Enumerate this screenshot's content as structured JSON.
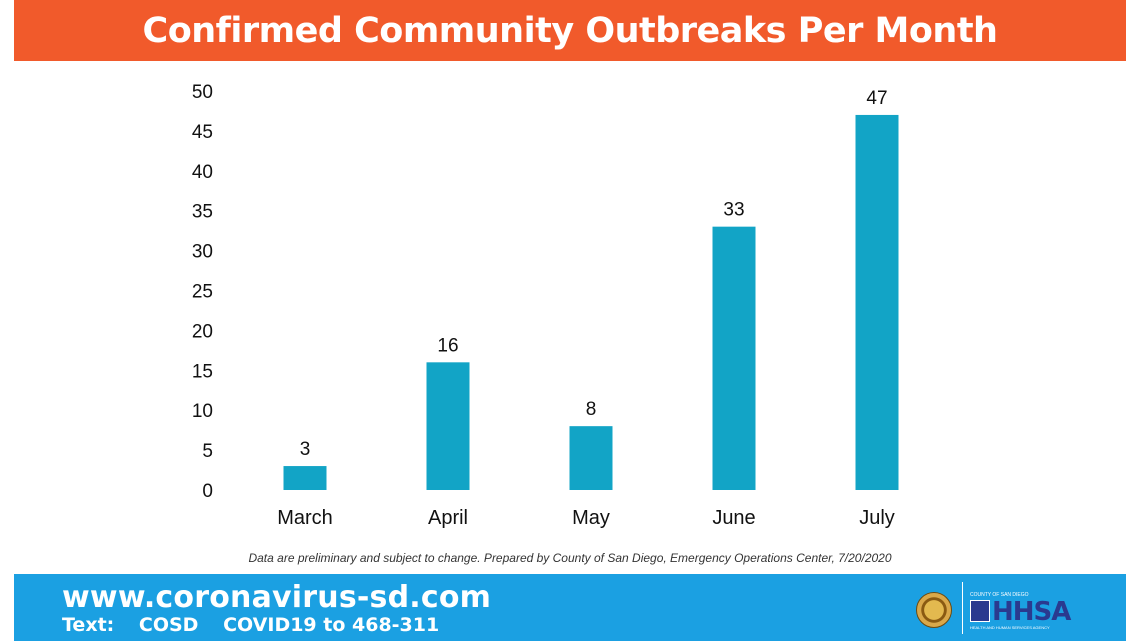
{
  "header": {
    "title": "Confirmed Community Outbreaks Per Month"
  },
  "chart_data": {
    "type": "bar",
    "title": "Confirmed Community Outbreaks Per Month",
    "categories": [
      "March",
      "April",
      "May",
      "June",
      "July"
    ],
    "values": [
      3,
      16,
      8,
      33,
      47
    ],
    "ylim": [
      0,
      50
    ],
    "yticks": [
      0,
      5,
      10,
      15,
      20,
      25,
      30,
      35,
      40,
      45,
      50
    ],
    "grid": false,
    "data_labels": true,
    "bar_color": "#12a4c6"
  },
  "footnote": "Data are preliminary and subject to change.  Prepared by County of San Diego, Emergency Operations Center, 7/20/2020",
  "footer": {
    "url": "www.coronavirus-sd.com",
    "text_label": "Text:",
    "text_code": "COSD",
    "text_msg": "COVID19 to 468-311",
    "logo_small": "COUNTY OF SAN DIEGO",
    "logo_big": "HHSA",
    "logo_sub": "HEALTH AND HUMAN SERVICES AGENCY",
    "bg_color": "#1ba0e2"
  },
  "colors": {
    "header_bg": "#f15a2b",
    "footer_bg": "#1ba0e2",
    "bar": "#12a4c6"
  }
}
